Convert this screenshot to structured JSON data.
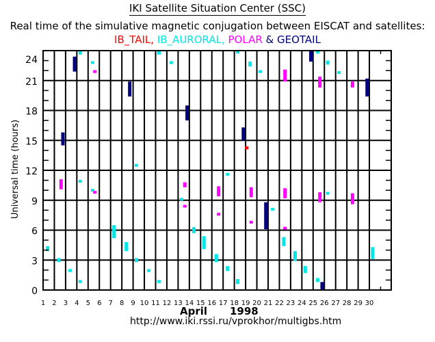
{
  "header": {
    "title": "IKI Satellite Situation Center (SSC)",
    "subtitle": "Real time of the simulative magnetic conjugation between EISCAT and satellites:",
    "legend_separator_1": ", ",
    "legend_separator_2": ", ",
    "legend_separator_3": " & "
  },
  "footer": {
    "month": "April",
    "year": "1998",
    "url": "http://www.iki.rssi.ru/vprokhor/multigbs.htm"
  },
  "chart_data": {
    "type": "scatter",
    "title": "Real time of the simulative magnetic conjugation between EISCAT and satellites",
    "xlabel": "April 1998",
    "ylabel": "Universal time (hours)",
    "xlim": [
      1,
      32
    ],
    "ylim": [
      0,
      24
    ],
    "x_ticks": [
      1,
      2,
      3,
      4,
      5,
      6,
      7,
      8,
      9,
      10,
      11,
      12,
      13,
      14,
      15,
      16,
      17,
      18,
      19,
      20,
      21,
      22,
      23,
      24,
      25,
      26,
      27,
      28,
      29,
      30
    ],
    "y_ticks": [
      0,
      3,
      6,
      9,
      12,
      15,
      18,
      21,
      24
    ],
    "y_minor_step": 1,
    "grid": true,
    "legend_placement": "top-center",
    "series": [
      {
        "name": "IB_TAIL",
        "color": "#ff0000",
        "segments": [
          {
            "day": 19.1,
            "from": 14.1,
            "to": 14.4
          }
        ]
      },
      {
        "name": "IB_AURORAL",
        "color": "#00e6e6",
        "segments": [
          {
            "day": 1.4,
            "from": 3.9,
            "to": 4.4
          },
          {
            "day": 2.4,
            "from": 2.8,
            "to": 3.2
          },
          {
            "day": 3.4,
            "from": 1.8,
            "to": 2.1
          },
          {
            "day": 4.3,
            "from": 23.6,
            "to": 24.0
          },
          {
            "day": 4.3,
            "from": 10.8,
            "to": 11.0
          },
          {
            "day": 4.3,
            "from": 0.7,
            "to": 1.0
          },
          {
            "day": 5.4,
            "from": 22.7,
            "to": 22.9
          },
          {
            "day": 5.4,
            "from": 9.9,
            "to": 10.1
          },
          {
            "day": 7.3,
            "from": 5.2,
            "to": 6.5
          },
          {
            "day": 8.4,
            "from": 3.9,
            "to": 4.8
          },
          {
            "day": 9.3,
            "from": 2.8,
            "to": 3.2
          },
          {
            "day": 9.3,
            "from": 12.4,
            "to": 12.6
          },
          {
            "day": 10.4,
            "from": 1.8,
            "to": 2.1
          },
          {
            "day": 11.3,
            "from": 0.7,
            "to": 1.0
          },
          {
            "day": 11.3,
            "from": 23.6,
            "to": 24.0
          },
          {
            "day": 12.4,
            "from": 22.7,
            "to": 22.9
          },
          {
            "day": 13.3,
            "from": 9.0,
            "to": 9.2
          },
          {
            "day": 14.4,
            "from": 5.7,
            "to": 6.3
          },
          {
            "day": 15.3,
            "from": 4.1,
            "to": 5.4
          },
          {
            "day": 16.4,
            "from": 2.8,
            "to": 3.6
          },
          {
            "day": 17.4,
            "from": 11.5,
            "to": 11.7
          },
          {
            "day": 17.4,
            "from": 1.9,
            "to": 2.4
          },
          {
            "day": 18.3,
            "from": 0.6,
            "to": 1.1
          },
          {
            "day": 18.3,
            "from": 23.7,
            "to": 24.0
          },
          {
            "day": 19.4,
            "from": 22.4,
            "to": 22.9
          },
          {
            "day": 20.3,
            "from": 21.8,
            "to": 22.0
          },
          {
            "day": 21.4,
            "from": 8.0,
            "to": 8.2
          },
          {
            "day": 22.4,
            "from": 4.4,
            "to": 5.3
          },
          {
            "day": 23.4,
            "from": 2.9,
            "to": 3.9
          },
          {
            "day": 24.3,
            "from": 1.7,
            "to": 2.4
          },
          {
            "day": 25.4,
            "from": 23.7,
            "to": 24.0
          },
          {
            "day": 25.4,
            "from": 0.8,
            "to": 1.2
          },
          {
            "day": 26.3,
            "from": 22.6,
            "to": 23.0
          },
          {
            "day": 26.3,
            "from": 9.6,
            "to": 9.8
          },
          {
            "day": 27.3,
            "from": 21.7,
            "to": 21.9
          },
          {
            "day": 30.3,
            "from": 3.1,
            "to": 4.3
          }
        ]
      },
      {
        "name": "POLAR",
        "color": "#ff00ff",
        "segments": [
          {
            "day": 2.6,
            "from": 10.1,
            "to": 11.1
          },
          {
            "day": 5.6,
            "from": 21.8,
            "to": 22.0
          },
          {
            "day": 5.6,
            "from": 9.7,
            "to": 9.9
          },
          {
            "day": 13.6,
            "from": 10.3,
            "to": 10.8
          },
          {
            "day": 13.6,
            "from": 8.3,
            "to": 8.5
          },
          {
            "day": 16.6,
            "from": 9.4,
            "to": 10.4
          },
          {
            "day": 16.6,
            "from": 7.5,
            "to": 7.7
          },
          {
            "day": 19.5,
            "from": 9.3,
            "to": 10.3
          },
          {
            "day": 19.5,
            "from": 6.7,
            "to": 6.9
          },
          {
            "day": 22.5,
            "from": 9.2,
            "to": 10.2
          },
          {
            "day": 22.5,
            "from": 6.1,
            "to": 6.3
          },
          {
            "day": 22.5,
            "from": 20.9,
            "to": 22.1
          },
          {
            "day": 25.6,
            "from": 8.8,
            "to": 9.8
          },
          {
            "day": 25.6,
            "from": 20.3,
            "to": 21.4
          },
          {
            "day": 28.5,
            "from": 8.6,
            "to": 9.7
          },
          {
            "day": 28.5,
            "from": 20.3,
            "to": 20.9
          }
        ]
      },
      {
        "name": "GEOTAIL",
        "color": "#000080",
        "segments": [
          {
            "day": 2.76,
            "from": 14.5,
            "to": 15.8
          },
          {
            "day": 3.8,
            "from": 21.9,
            "to": 23.4
          },
          {
            "day": 8.7,
            "from": 19.4,
            "to": 20.9
          },
          {
            "day": 13.8,
            "from": 17.0,
            "to": 18.5
          },
          {
            "day": 18.8,
            "from": 15.0,
            "to": 16.3
          },
          {
            "day": 20.8,
            "from": 6.1,
            "to": 8.8
          },
          {
            "day": 24.8,
            "from": 22.9,
            "to": 24.0
          },
          {
            "day": 25.8,
            "from": 0.0,
            "to": 0.8
          },
          {
            "day": 29.8,
            "from": 19.4,
            "to": 21.2
          }
        ]
      }
    ]
  }
}
